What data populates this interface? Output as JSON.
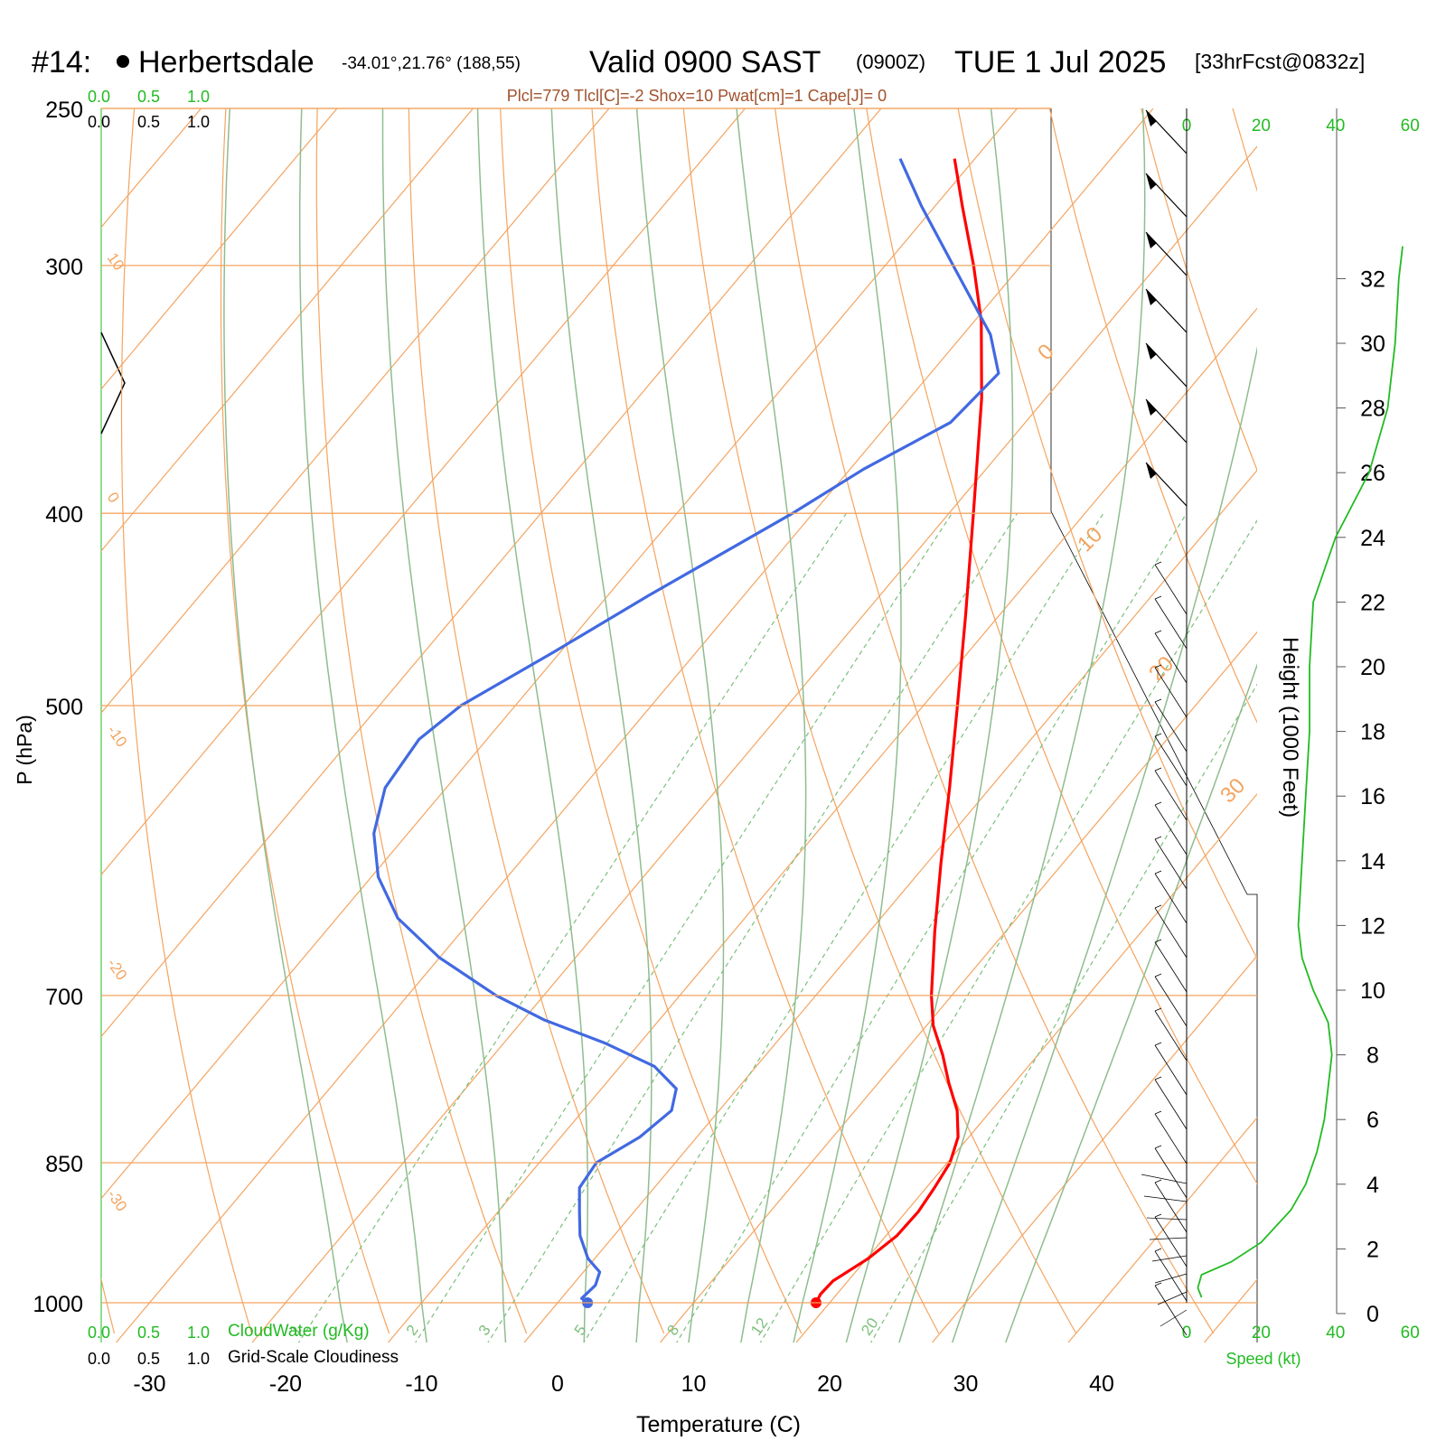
{
  "header": {
    "station_num": "#14:",
    "station_name": "Herbertsdale",
    "coords": "-34.01°,21.76° (188,55)",
    "valid": "Valid 0900 SAST",
    "zulu": "(0900Z)",
    "date": "TUE 1 Jul 2025",
    "fcst": "[33hrFcst@0832z]"
  },
  "indices": "Plcl=779 Tlcl[C]=-2 Shox=10 Pwat[cm]=1 Cape[J]= 0",
  "scales": {
    "cloudwater_ticks": [
      "0.0",
      "0.5",
      "1.0"
    ],
    "cloudiness_ticks": [
      "0.0",
      "0.5",
      "1.0"
    ],
    "cloudwater_label": "CloudWater (g/Kg)",
    "cloudiness_label": "Grid-Scale Cloudiness",
    "speed_ticks": [
      "0",
      "20",
      "40",
      "60"
    ],
    "speed_label": "Speed (kt)"
  },
  "colors": {
    "temperature": "#ff0000",
    "dewpoint": "#4169e1",
    "isotherm": "#f4a460",
    "dry_adiabat": "#f4a460",
    "moist_adiabat": "#8fbc8f",
    "mixing_ratio": "#7cbf7c",
    "speed": "#22bb22",
    "label_green": "#22bb22",
    "indices": "#a0522d"
  },
  "chart_data": {
    "type": "skew-t",
    "xlabel": "Temperature (C)",
    "ylabel": "P (hPa)",
    "height_label": "Height (1000 Feet)",
    "pressure_ticks": [
      250,
      300,
      400,
      500,
      700,
      850,
      1000
    ],
    "temperature_ticks": [
      -30,
      -20,
      -10,
      0,
      10,
      20,
      30,
      40
    ],
    "height_ticks": [
      0,
      2,
      4,
      6,
      8,
      10,
      12,
      14,
      16,
      18,
      20,
      22,
      24,
      26,
      28,
      30,
      32
    ],
    "isotherm_labels": [
      {
        "t": -30,
        "text": "-30"
      },
      {
        "t": -20,
        "text": "-20"
      },
      {
        "t": -10,
        "text": "-10"
      },
      {
        "t": 0,
        "text": "0"
      },
      {
        "t": 10,
        "text": "10"
      },
      {
        "t": 20,
        "text": "20"
      },
      {
        "t": 30,
        "text": "30"
      }
    ],
    "top_isotherm_label": {
      "t": 10,
      "text": "10"
    },
    "mixing_ratio_labels": [
      "1",
      "2",
      "3",
      "5",
      "8",
      "12",
      "20"
    ],
    "temperature": [
      {
        "p": 1000,
        "t": 19.0
      },
      {
        "p": 990,
        "t": 18.8
      },
      {
        "p": 975,
        "t": 18.9
      },
      {
        "p": 950,
        "t": 20.1
      },
      {
        "p": 925,
        "t": 20.8
      },
      {
        "p": 900,
        "t": 20.9
      },
      {
        "p": 875,
        "t": 20.6
      },
      {
        "p": 850,
        "t": 20.2
      },
      {
        "p": 825,
        "t": 19.2
      },
      {
        "p": 800,
        "t": 17.5
      },
      {
        "p": 775,
        "t": 15.2
      },
      {
        "p": 750,
        "t": 13.0
      },
      {
        "p": 725,
        "t": 10.5
      },
      {
        "p": 700,
        "t": 8.5
      },
      {
        "p": 650,
        "t": 4.8
      },
      {
        "p": 600,
        "t": 1.0
      },
      {
        "p": 550,
        "t": -3.0
      },
      {
        "p": 500,
        "t": -7.5
      },
      {
        "p": 450,
        "t": -12.5
      },
      {
        "p": 400,
        "t": -18.2
      },
      {
        "p": 350,
        "t": -24.7
      },
      {
        "p": 320,
        "t": -29.5
      },
      {
        "p": 300,
        "t": -33.5
      },
      {
        "p": 280,
        "t": -38.0
      },
      {
        "p": 265,
        "t": -41.5
      }
    ],
    "dewpoint": [
      {
        "p": 1000,
        "t": 2.2
      },
      {
        "p": 995,
        "t": 1.5
      },
      {
        "p": 980,
        "t": 1.7
      },
      {
        "p": 965,
        "t": 1.2
      },
      {
        "p": 950,
        "t": -0.5
      },
      {
        "p": 925,
        "t": -2.5
      },
      {
        "p": 900,
        "t": -4.0
      },
      {
        "p": 875,
        "t": -5.5
      },
      {
        "p": 850,
        "t": -5.8
      },
      {
        "p": 825,
        "t": -4.2
      },
      {
        "p": 800,
        "t": -3.5
      },
      {
        "p": 780,
        "t": -4.5
      },
      {
        "p": 760,
        "t": -7.5
      },
      {
        "p": 740,
        "t": -12.5
      },
      {
        "p": 720,
        "t": -18.5
      },
      {
        "p": 700,
        "t": -23.5
      },
      {
        "p": 670,
        "t": -30.0
      },
      {
        "p": 640,
        "t": -35.5
      },
      {
        "p": 610,
        "t": -39.5
      },
      {
        "p": 580,
        "t": -42.5
      },
      {
        "p": 550,
        "t": -44.5
      },
      {
        "p": 520,
        "t": -45.0
      },
      {
        "p": 500,
        "t": -44.0
      },
      {
        "p": 470,
        "t": -40.5
      },
      {
        "p": 440,
        "t": -37.0
      },
      {
        "p": 400,
        "t": -31.5
      },
      {
        "p": 380,
        "t": -29.0
      },
      {
        "p": 360,
        "t": -25.5
      },
      {
        "p": 340,
        "t": -25.0
      },
      {
        "p": 325,
        "t": -28.0
      },
      {
        "p": 300,
        "t": -35.0
      },
      {
        "p": 280,
        "t": -41.0
      },
      {
        "p": 265,
        "t": -45.5
      }
    ],
    "wind_speed": [
      {
        "h": 0.5,
        "s": 4
      },
      {
        "h": 0.8,
        "s": 3
      },
      {
        "h": 1.2,
        "s": 4
      },
      {
        "h": 1.6,
        "s": 12
      },
      {
        "h": 2.2,
        "s": 20
      },
      {
        "h": 3.2,
        "s": 28
      },
      {
        "h": 4.0,
        "s": 32
      },
      {
        "h": 5.0,
        "s": 35
      },
      {
        "h": 6.0,
        "s": 37
      },
      {
        "h": 7.0,
        "s": 38
      },
      {
        "h": 8.0,
        "s": 39
      },
      {
        "h": 9.0,
        "s": 38
      },
      {
        "h": 10.0,
        "s": 34
      },
      {
        "h": 11.0,
        "s": 31
      },
      {
        "h": 12.0,
        "s": 30
      },
      {
        "h": 14.0,
        "s": 31
      },
      {
        "h": 16.0,
        "s": 32
      },
      {
        "h": 18.0,
        "s": 33
      },
      {
        "h": 20.0,
        "s": 33
      },
      {
        "h": 22.0,
        "s": 34
      },
      {
        "h": 24.0,
        "s": 40
      },
      {
        "h": 26.0,
        "s": 49
      },
      {
        "h": 28.0,
        "s": 54
      },
      {
        "h": 30.0,
        "s": 56
      },
      {
        "h": 32.0,
        "s": 57
      },
      {
        "h": 33.0,
        "s": 58
      }
    ]
  }
}
